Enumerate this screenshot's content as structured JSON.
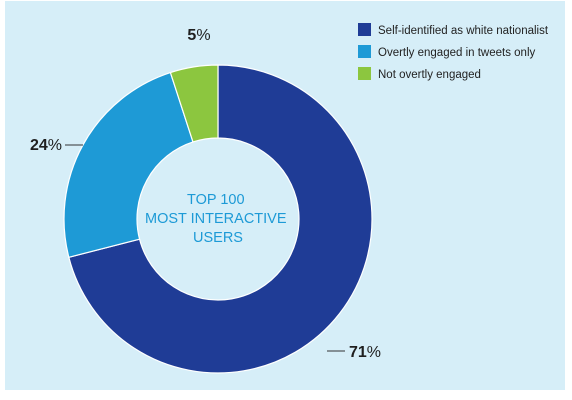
{
  "colors": {
    "background": "#d6eef8",
    "center_text": "#1d9ad6"
  },
  "chart_data": {
    "type": "pie",
    "style": "donut",
    "center_text": [
      "TOP 100",
      "MOST INTERACTIVE",
      "USERS"
    ],
    "series": [
      {
        "name": "Self-identified as white nationalist",
        "value": 71,
        "label": "71%",
        "color": "#1f3c96"
      },
      {
        "name": "Overtly engaged in tweets only",
        "value": 24,
        "label": "24%",
        "color": "#1e9ad6"
      },
      {
        "name": "Not overtly engaged",
        "value": 5,
        "label": "5%",
        "color": "#8cc63f"
      }
    ],
    "legend_position": "top-right"
  }
}
